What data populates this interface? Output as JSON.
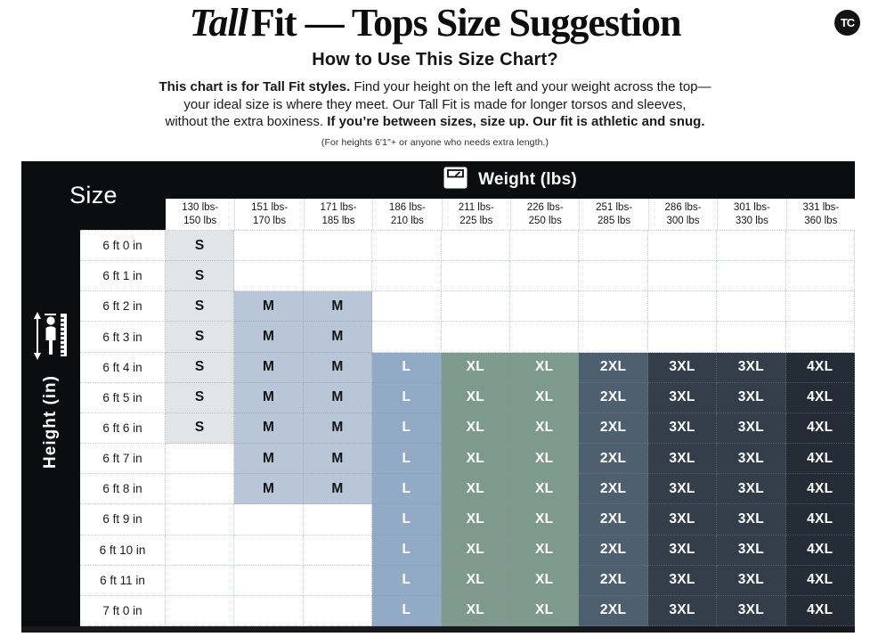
{
  "page": {
    "logo_text": "TC",
    "title_italic": "Tall",
    "title_rest": "Fit — Tops Size Suggestion",
    "subtitle": "How to Use This Size Chart?",
    "intro_lines": [
      [
        {
          "t": "This chart is for Tall Fit styles.",
          "b": true
        },
        {
          "t": " Find your height on the left and your weight across the top—",
          "b": false
        }
      ],
      [
        {
          "t": "your ideal size is where they meet. Our Tall Fit is made for longer torsos and sleeves,",
          "b": false
        }
      ],
      [
        {
          "t": "without the extra boxiness. ",
          "b": false
        },
        {
          "t": "If you’re between sizes, size up. Our fit is athletic and snug.",
          "b": true
        }
      ]
    ],
    "note": "(For heights 6'1\"+ or anyone who needs extra length.)"
  },
  "table": {
    "corner_label": "Size",
    "col_group_label": "Weight (lbs)",
    "row_group_label": "Height (in)",
    "icons": {
      "weight": "scale-icon",
      "height": "person-ruler-icon"
    },
    "columns": [
      [
        "130 lbs-",
        "150 lbs"
      ],
      [
        "151 lbs-",
        "170 lbs"
      ],
      [
        "171 lbs-",
        "185 lbs"
      ],
      [
        "186 lbs-",
        "210 lbs"
      ],
      [
        "211 lbs-",
        "225 lbs"
      ],
      [
        "226 lbs-",
        "250 lbs"
      ],
      [
        "251 lbs-",
        "285 lbs"
      ],
      [
        "286 lbs-",
        "300 lbs"
      ],
      [
        "301 lbs-",
        "330 lbs"
      ],
      [
        "331 lbs-",
        "360 lbs"
      ]
    ],
    "rows": [
      "6 ft 0 in",
      "6 ft 1 in",
      "6 ft 2 in",
      "6 ft 3 in",
      "6 ft 4 in",
      "6 ft 5 in",
      "6 ft 6 in",
      "6 ft 7 in",
      "6 ft 8 in",
      "6 ft 9 in",
      "6 ft 10 in",
      "6 ft 11 in",
      "7 ft 0 in"
    ],
    "cells": [
      [
        "S",
        "",
        "",
        "",
        "",
        "",
        "",
        "",
        "",
        ""
      ],
      [
        "S",
        "",
        "",
        "",
        "",
        "",
        "",
        "",
        "",
        ""
      ],
      [
        "S",
        "M",
        "M",
        "",
        "",
        "",
        "",
        "",
        "",
        ""
      ],
      [
        "S",
        "M",
        "M",
        "",
        "",
        "",
        "",
        "",
        "",
        ""
      ],
      [
        "S",
        "M",
        "M",
        "L",
        "XL",
        "XL",
        "2XL",
        "3XL",
        "3XL",
        "4XL"
      ],
      [
        "S",
        "M",
        "M",
        "L",
        "XL",
        "XL",
        "2XL",
        "3XL",
        "3XL",
        "4XL"
      ],
      [
        "S",
        "M",
        "M",
        "L",
        "XL",
        "XL",
        "2XL",
        "3XL",
        "3XL",
        "4XL"
      ],
      [
        "",
        "M",
        "M",
        "L",
        "XL",
        "XL",
        "2XL",
        "3XL",
        "3XL",
        "4XL"
      ],
      [
        "",
        "M",
        "M",
        "L",
        "XL",
        "XL",
        "2XL",
        "3XL",
        "3XL",
        "4XL"
      ],
      [
        "",
        "",
        "",
        "L",
        "XL",
        "XL",
        "2XL",
        "3XL",
        "3XL",
        "4XL"
      ],
      [
        "",
        "",
        "",
        "L",
        "XL",
        "XL",
        "2XL",
        "3XL",
        "3XL",
        "4XL"
      ],
      [
        "",
        "",
        "",
        "L",
        "XL",
        "XL",
        "2XL",
        "3XL",
        "3XL",
        "4XL"
      ],
      [
        "",
        "",
        "",
        "L",
        "XL",
        "XL",
        "2XL",
        "3XL",
        "3XL",
        "4XL"
      ]
    ],
    "size_styles": {
      "S": {
        "bg": "#e1e5e8",
        "fg": "#141414"
      },
      "M": {
        "bg": "#b9c6d7",
        "fg": "#141414"
      },
      "L": {
        "bg": "#92aac6",
        "fg": "#ffffff"
      },
      "XL": {
        "bg": "#7e998e",
        "fg": "#ffffff"
      },
      "2XL": {
        "bg": "#4e5f70",
        "fg": "#ffffff"
      },
      "3XL": {
        "bg": "#333e4a",
        "fg": "#ffffff"
      },
      "4XL": {
        "bg": "#242c35",
        "fg": "#ffffff"
      }
    },
    "header_bg": "#0c0d0e"
  },
  "chart_data": {
    "type": "table",
    "title": "Tall Fit — Tops Size Suggestion",
    "xlabel": "Weight (lbs)",
    "ylabel": "Height (in)",
    "columns": [
      "130 lbs-150 lbs",
      "151 lbs-170 lbs",
      "171 lbs-185 lbs",
      "186 lbs-210 lbs",
      "211 lbs-225 lbs",
      "226 lbs-250 lbs",
      "251 lbs-285 lbs",
      "286 lbs-300 lbs",
      "301 lbs-330 lbs",
      "331 lbs-360 lbs"
    ],
    "rows": [
      "6 ft 0 in",
      "6 ft 1 in",
      "6 ft 2 in",
      "6 ft 3 in",
      "6 ft 4 in",
      "6 ft 5 in",
      "6 ft 6 in",
      "6 ft 7 in",
      "6 ft 8 in",
      "6 ft 9 in",
      "6 ft 10 in",
      "6 ft 11 in",
      "7 ft 0 in"
    ],
    "cells": [
      [
        "S",
        "",
        "",
        "",
        "",
        "",
        "",
        "",
        "",
        ""
      ],
      [
        "S",
        "",
        "",
        "",
        "",
        "",
        "",
        "",
        "",
        ""
      ],
      [
        "S",
        "M",
        "M",
        "",
        "",
        "",
        "",
        "",
        "",
        ""
      ],
      [
        "S",
        "M",
        "M",
        "",
        "",
        "",
        "",
        "",
        "",
        ""
      ],
      [
        "S",
        "M",
        "M",
        "L",
        "XL",
        "XL",
        "2XL",
        "3XL",
        "3XL",
        "4XL"
      ],
      [
        "S",
        "M",
        "M",
        "L",
        "XL",
        "XL",
        "2XL",
        "3XL",
        "3XL",
        "4XL"
      ],
      [
        "S",
        "M",
        "M",
        "L",
        "XL",
        "XL",
        "2XL",
        "3XL",
        "3XL",
        "4XL"
      ],
      [
        "",
        "M",
        "M",
        "L",
        "XL",
        "XL",
        "2XL",
        "3XL",
        "3XL",
        "4XL"
      ],
      [
        "",
        "M",
        "M",
        "L",
        "XL",
        "XL",
        "2XL",
        "3XL",
        "3XL",
        "4XL"
      ],
      [
        "",
        "",
        "",
        "L",
        "XL",
        "XL",
        "2XL",
        "3XL",
        "3XL",
        "4XL"
      ],
      [
        "",
        "",
        "",
        "L",
        "XL",
        "XL",
        "2XL",
        "3XL",
        "3XL",
        "4XL"
      ],
      [
        "",
        "",
        "",
        "L",
        "XL",
        "XL",
        "2XL",
        "3XL",
        "3XL",
        "4XL"
      ],
      [
        "",
        "",
        "",
        "L",
        "XL",
        "XL",
        "2XL",
        "3XL",
        "3XL",
        "4XL"
      ]
    ]
  }
}
